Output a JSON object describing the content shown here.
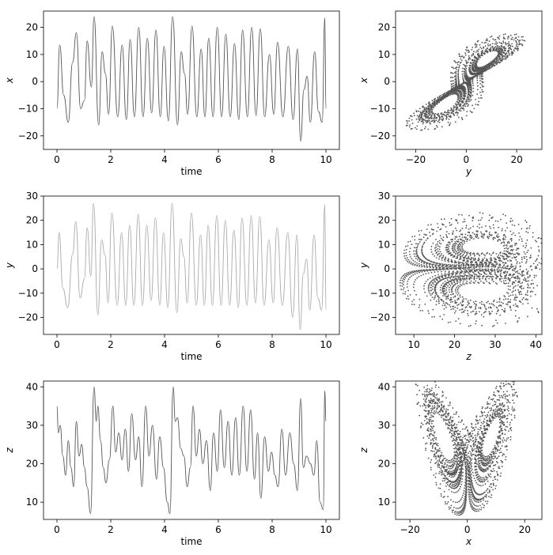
{
  "figure": {
    "colors": {
      "ts_x": "#555555",
      "ts_y": "#aaaaaa",
      "ts_z": "#555555",
      "scatter": "#555555",
      "axis": "#000000"
    }
  },
  "chart_data": [
    {
      "id": "ts-x",
      "type": "line",
      "xlabel": "time",
      "ylabel": "x",
      "ylabel_italic": true,
      "xlim": [
        -0.5,
        10.5
      ],
      "ylim": [
        -25,
        26
      ],
      "xticks": [
        0,
        2,
        4,
        6,
        8,
        10
      ],
      "yticks": [
        -20,
        -10,
        0,
        10,
        20
      ],
      "series": [
        {
          "color": "#555555",
          "peaks": [
            [
              0,
              -10
            ],
            [
              0.1,
              13.5
            ],
            [
              0.25,
              -5
            ],
            [
              0.42,
              -15
            ],
            [
              0.58,
              7
            ],
            [
              0.72,
              18
            ],
            [
              0.88,
              -10
            ],
            [
              1.02,
              -7
            ],
            [
              1.12,
              15
            ],
            [
              1.28,
              -2
            ],
            [
              1.38,
              24
            ],
            [
              1.55,
              -16
            ],
            [
              1.68,
              11
            ],
            [
              1.8,
              3
            ],
            [
              1.92,
              -12
            ],
            [
              2.06,
              20.5
            ],
            [
              2.26,
              -13
            ],
            [
              2.42,
              13.5
            ],
            [
              2.58,
              -14
            ],
            [
              2.72,
              15.5
            ],
            [
              2.88,
              -13
            ],
            [
              3.04,
              20
            ],
            [
              3.2,
              -13
            ],
            [
              3.36,
              16
            ],
            [
              3.52,
              -11.5
            ],
            [
              3.68,
              19
            ],
            [
              3.84,
              -13
            ],
            [
              3.98,
              13
            ],
            [
              4.14,
              -14.5
            ],
            [
              4.3,
              24
            ],
            [
              4.48,
              -16
            ],
            [
              4.62,
              11
            ],
            [
              4.74,
              3
            ],
            [
              4.86,
              -12
            ],
            [
              5.02,
              20.5
            ],
            [
              5.2,
              -13
            ],
            [
              5.36,
              12
            ],
            [
              5.5,
              -13
            ],
            [
              5.64,
              16
            ],
            [
              5.8,
              -13
            ],
            [
              5.96,
              20
            ],
            [
              6.12,
              -13
            ],
            [
              6.28,
              17.5
            ],
            [
              6.44,
              -13
            ],
            [
              6.6,
              14
            ],
            [
              6.76,
              -14
            ],
            [
              6.9,
              19
            ],
            [
              7.08,
              -13
            ],
            [
              7.24,
              20
            ],
            [
              7.4,
              -12.5
            ],
            [
              7.56,
              19.5
            ],
            [
              7.72,
              -13
            ],
            [
              7.9,
              10
            ],
            [
              8.06,
              -12
            ],
            [
              8.2,
              14.5
            ],
            [
              8.4,
              -13
            ],
            [
              8.6,
              13
            ],
            [
              8.78,
              -14
            ],
            [
              8.94,
              12
            ],
            [
              9.06,
              -22
            ],
            [
              9.18,
              -3
            ],
            [
              9.3,
              2
            ],
            [
              9.42,
              -15
            ],
            [
              9.58,
              11
            ],
            [
              9.72,
              -11
            ],
            [
              9.86,
              -15
            ],
            [
              9.96,
              23.5
            ],
            [
              10,
              -10
            ]
          ]
        }
      ]
    },
    {
      "id": "ts-y",
      "type": "line",
      "xlabel": "time",
      "ylabel": "y",
      "ylabel_italic": true,
      "xlim": [
        -0.5,
        10.5
      ],
      "ylim": [
        -27,
        30
      ],
      "xticks": [
        0,
        2,
        4,
        6,
        8,
        10
      ],
      "yticks": [
        -20,
        -10,
        0,
        10,
        20,
        30
      ],
      "series": [
        {
          "color": "#aaaaaa",
          "peaks": [
            [
              0,
              0
            ],
            [
              0.08,
              15
            ],
            [
              0.22,
              -8
            ],
            [
              0.4,
              -16
            ],
            [
              0.58,
              6
            ],
            [
              0.7,
              19.5
            ],
            [
              0.86,
              -12
            ],
            [
              1.02,
              -4
            ],
            [
              1.12,
              17
            ],
            [
              1.26,
              -3
            ],
            [
              1.36,
              27
            ],
            [
              1.52,
              -19
            ],
            [
              1.66,
              12
            ],
            [
              1.78,
              6
            ],
            [
              1.9,
              -14
            ],
            [
              2.04,
              23
            ],
            [
              2.24,
              -15
            ],
            [
              2.4,
              15
            ],
            [
              2.56,
              -15
            ],
            [
              2.7,
              18
            ],
            [
              2.86,
              -15
            ],
            [
              3.02,
              22.5
            ],
            [
              3.18,
              -15
            ],
            [
              3.34,
              18
            ],
            [
              3.5,
              -13
            ],
            [
              3.66,
              21
            ],
            [
              3.82,
              -15
            ],
            [
              3.96,
              15
            ],
            [
              4.12,
              -16
            ],
            [
              4.28,
              27
            ],
            [
              4.46,
              -18
            ],
            [
              4.6,
              12.5
            ],
            [
              4.72,
              5
            ],
            [
              4.84,
              -14
            ],
            [
              5,
              23
            ],
            [
              5.18,
              -15
            ],
            [
              5.34,
              14
            ],
            [
              5.48,
              -15
            ],
            [
              5.62,
              18
            ],
            [
              5.78,
              -15
            ],
            [
              5.94,
              22
            ],
            [
              6.1,
              -15
            ],
            [
              6.26,
              20
            ],
            [
              6.42,
              -15
            ],
            [
              6.58,
              16
            ],
            [
              6.74,
              -16
            ],
            [
              6.88,
              21
            ],
            [
              7.06,
              -15
            ],
            [
              7.22,
              22
            ],
            [
              7.38,
              -14
            ],
            [
              7.54,
              21.5
            ],
            [
              7.7,
              -15
            ],
            [
              7.88,
              12
            ],
            [
              8.04,
              -14
            ],
            [
              8.18,
              17
            ],
            [
              8.38,
              -15
            ],
            [
              8.58,
              15
            ],
            [
              8.76,
              -20
            ],
            [
              8.92,
              14
            ],
            [
              9.04,
              -25
            ],
            [
              9.16,
              -2
            ],
            [
              9.28,
              4
            ],
            [
              9.4,
              -17
            ],
            [
              9.56,
              14
            ],
            [
              9.7,
              -12
            ],
            [
              9.84,
              -17
            ],
            [
              9.96,
              26.5
            ],
            [
              10,
              -17
            ]
          ]
        }
      ]
    },
    {
      "id": "ts-z",
      "type": "line",
      "xlabel": "time",
      "ylabel": "z",
      "ylabel_italic": true,
      "xlim": [
        -0.5,
        10.5
      ],
      "ylim": [
        5.5,
        41.5
      ],
      "xticks": [
        0,
        2,
        4,
        6,
        8,
        10
      ],
      "yticks": [
        10,
        20,
        30,
        40
      ],
      "series": [
        {
          "color": "#555555",
          "peaks": [
            [
              0,
              35
            ],
            [
              0.05,
              28
            ],
            [
              0.12,
              30
            ],
            [
              0.22,
              22
            ],
            [
              0.32,
              17
            ],
            [
              0.42,
              26
            ],
            [
              0.52,
              19
            ],
            [
              0.62,
              14
            ],
            [
              0.72,
              31
            ],
            [
              0.82,
              22
            ],
            [
              0.92,
              25
            ],
            [
              1.02,
              19
            ],
            [
              1.12,
              14
            ],
            [
              1.25,
              7
            ],
            [
              1.38,
              40
            ],
            [
              1.46,
              31
            ],
            [
              1.52,
              35
            ],
            [
              1.62,
              26
            ],
            [
              1.72,
              19
            ],
            [
              1.82,
              15
            ],
            [
              1.95,
              21
            ],
            [
              2.08,
              35
            ],
            [
              2.18,
              23
            ],
            [
              2.3,
              28
            ],
            [
              2.42,
              21
            ],
            [
              2.54,
              29
            ],
            [
              2.66,
              18
            ],
            [
              2.78,
              33
            ],
            [
              2.92,
              21
            ],
            [
              3.04,
              27
            ],
            [
              3.16,
              14
            ],
            [
              3.3,
              35
            ],
            [
              3.42,
              22
            ],
            [
              3.55,
              30
            ],
            [
              3.7,
              16
            ],
            [
              3.82,
              27
            ],
            [
              3.96,
              19
            ],
            [
              4.1,
              10
            ],
            [
              4.2,
              7
            ],
            [
              4.32,
              40
            ],
            [
              4.4,
              31
            ],
            [
              4.48,
              32
            ],
            [
              4.6,
              24
            ],
            [
              4.72,
              22
            ],
            [
              4.84,
              14
            ],
            [
              4.96,
              19
            ],
            [
              5.06,
              35
            ],
            [
              5.18,
              22
            ],
            [
              5.3,
              29
            ],
            [
              5.42,
              20
            ],
            [
              5.56,
              26
            ],
            [
              5.7,
              13
            ],
            [
              5.82,
              28
            ],
            [
              5.96,
              18
            ],
            [
              6.08,
              34
            ],
            [
              6.22,
              19
            ],
            [
              6.36,
              31
            ],
            [
              6.5,
              17
            ],
            [
              6.64,
              32
            ],
            [
              6.78,
              17
            ],
            [
              6.92,
              35
            ],
            [
              7.06,
              18
            ],
            [
              7.2,
              34
            ],
            [
              7.34,
              16
            ],
            [
              7.46,
              28
            ],
            [
              7.58,
              11
            ],
            [
              7.72,
              27
            ],
            [
              7.86,
              18
            ],
            [
              7.98,
              23
            ],
            [
              8.1,
              17
            ],
            [
              8.22,
              14
            ],
            [
              8.36,
              29
            ],
            [
              8.5,
              17
            ],
            [
              8.66,
              28
            ],
            [
              8.8,
              20
            ],
            [
              8.94,
              13
            ],
            [
              9.06,
              37
            ],
            [
              9.16,
              19
            ],
            [
              9.28,
              22
            ],
            [
              9.42,
              20
            ],
            [
              9.55,
              17
            ],
            [
              9.66,
              26
            ],
            [
              9.78,
              10
            ],
            [
              9.9,
              8
            ],
            [
              9.96,
              39
            ],
            [
              10,
              31
            ]
          ]
        }
      ]
    },
    {
      "id": "ph-xy",
      "type": "scatter",
      "xlabel": "y",
      "ylabel": "x",
      "xlabel_italic": true,
      "ylabel_italic": true,
      "xlim": [
        -28,
        30
      ],
      "ylim": [
        -25,
        26
      ],
      "xticks": [
        -20,
        0,
        20
      ],
      "yticks": [
        -20,
        -10,
        0,
        10,
        20
      ],
      "points_color": "#555555",
      "projection": "y-x"
    },
    {
      "id": "ph-zy",
      "type": "scatter",
      "xlabel": "z",
      "ylabel": "y",
      "xlabel_italic": true,
      "ylabel_italic": true,
      "xlim": [
        5.5,
        41.5
      ],
      "ylim": [
        -27,
        30
      ],
      "xticks": [
        10,
        20,
        30,
        40
      ],
      "yticks": [
        -20,
        -10,
        0,
        10,
        20,
        30
      ],
      "points_color": "#555555",
      "projection": "z-y"
    },
    {
      "id": "ph-xz",
      "type": "scatter",
      "xlabel": "x",
      "ylabel": "z",
      "xlabel_italic": true,
      "ylabel_italic": true,
      "xlim": [
        -25,
        26
      ],
      "ylim": [
        5.5,
        41.5
      ],
      "xticks": [
        -20,
        0,
        20
      ],
      "yticks": [
        10,
        20,
        30,
        40
      ],
      "points_color": "#555555",
      "projection": "x-z"
    }
  ]
}
